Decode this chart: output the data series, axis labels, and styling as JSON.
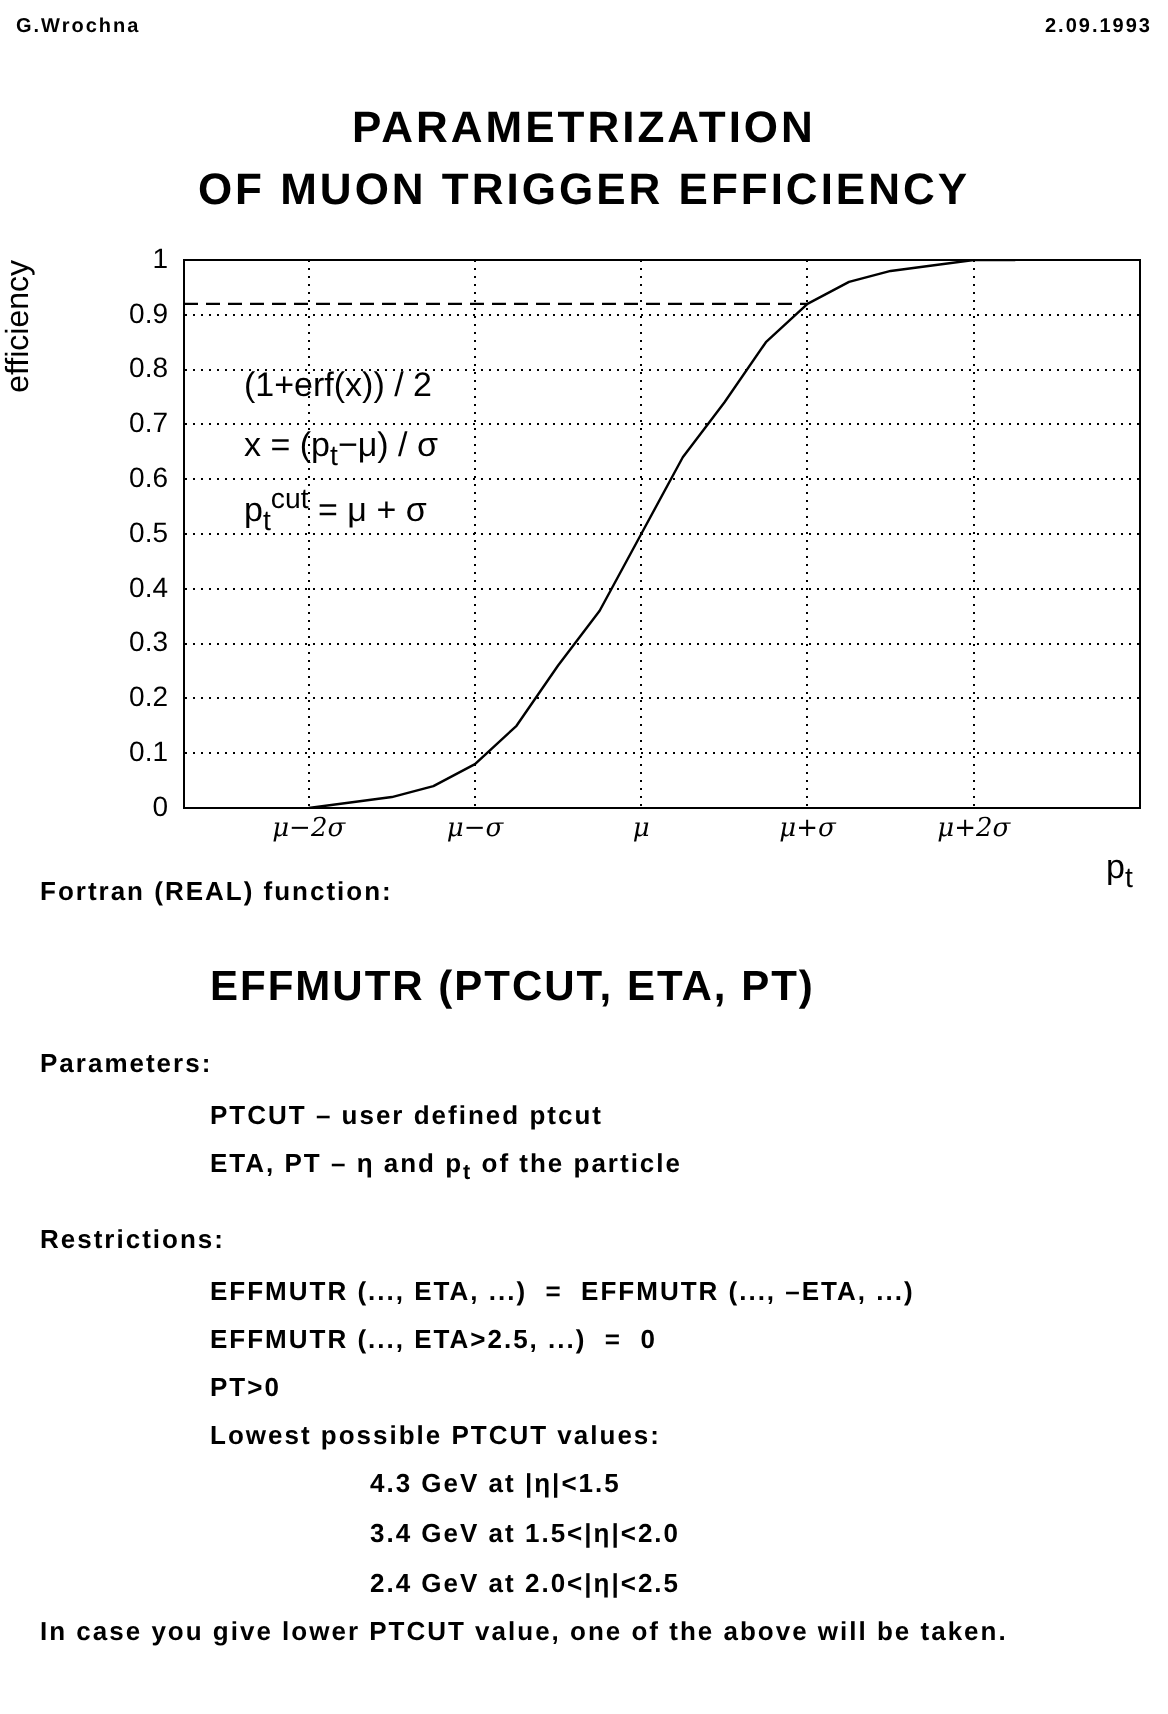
{
  "chart_data": {
    "type": "line",
    "title": "PARAMETRIZATION\nOF MUON TRIGGER EFFICIENCY",
    "xlabel": "p$_{t}$",
    "ylabel": "efficiency",
    "categories": [
      null,
      null,
      null,
      "μ−2σ",
      null,
      null,
      null,
      "μ−σ",
      null,
      null,
      null,
      "μ",
      null,
      null,
      null,
      "μ+σ",
      null,
      null,
      null,
      "μ+2σ",
      null,
      null,
      null,
      null
    ],
    "ylim": [
      0,
      1
    ],
    "yticks": [
      0,
      0.1,
      0.2,
      0.3,
      0.4,
      0.5,
      0.6,
      0.7,
      0.8,
      0.9,
      1
    ],
    "series": [
      {
        "type": "line",
        "color": "#000000",
        "line_style": "solid",
        "values": [
          null,
          null,
          null,
          0.0,
          0.01,
          0.02,
          0.04,
          0.08,
          0.15,
          0.26,
          0.36,
          0.5,
          0.64,
          0.74,
          0.85,
          0.92,
          0.96,
          0.98,
          0.99,
          1.0,
          1.0,
          null,
          null,
          null
        ]
      },
      {
        "type": "line",
        "color": "#000000",
        "line_style": "dashed",
        "values": [
          0.92,
          0.92,
          0.92,
          0.92,
          0.92,
          0.92,
          0.92,
          0.92,
          0.92,
          0.92,
          0.92,
          0.92,
          0.92,
          0.92,
          0.92,
          0.92,
          null,
          null,
          null,
          null,
          null,
          null,
          null,
          null
        ]
      }
    ],
    "grid": true,
    "legend": false,
    "marker": "none",
    "annotations": [
      "G.Wrochna",
      "2.09.1993",
      "(1+erf(x)) / 2",
      "x = (p$_{t}$−μ) / σ",
      "p$_{t}$$^{cut}$ = μ + σ",
      "Fortran (REAL) function:",
      "EFFMUTR (PTCUT, ETA, PT)",
      "Parameters:",
      "PTCUT – user defined ptcut",
      "ETA, PT – η and p$_{t}$ of the particle",
      "Restrictions:",
      "EFFMUTR (..., ETA, ...)  =  EFFMUTR (..., –ETA, ...)",
      "EFFMUTR (..., ETA>2.5, ...)  =  0",
      "PT>0",
      "Lowest possible PTCUT values:",
      "4.3 GeV at |η|<1.5",
      "3.4 GeV at 1.5<|η|<2.0",
      "2.4 GeV at 2.0<|η|<2.5",
      "In case you give lower PTCUT value, one of the above will be taken."
    ]
  }
}
